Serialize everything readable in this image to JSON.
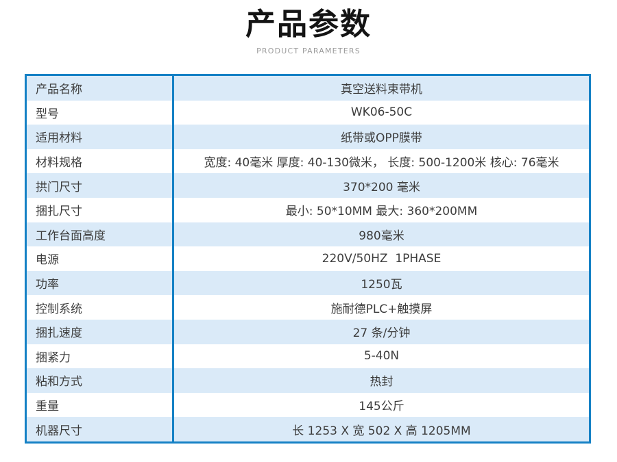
{
  "header": {
    "title": "产品参数",
    "subtitle": "PRODUCT PARAMETERS"
  },
  "colors": {
    "table_border": "#1581c5",
    "row_alt": "#daeaf8",
    "row_plain": "#ffffff",
    "text": "#3d3d3d",
    "title_text": "#141414",
    "subtitle_text": "#9b9b9b"
  },
  "table": {
    "rows": [
      {
        "label": "产品名称",
        "value": "真空送料束带机"
      },
      {
        "label": "型号",
        "value": "WK06-50C"
      },
      {
        "label": "适用材料",
        "value": "纸带或OPP膜带"
      },
      {
        "label": "材料规格",
        "value": "宽度: 40毫米 厚度: 40-130微米， 长度: 500-1200米 核心: 76毫米"
      },
      {
        "label": "拱门尺寸",
        "value": "370*200 毫米"
      },
      {
        "label": "捆扎尺寸",
        "value": "最小: 50*10MM 最大: 360*200MM"
      },
      {
        "label": "工作台面高度",
        "value": "980毫米"
      },
      {
        "label": "电源",
        "value": "220V/50HZ  1PHASE"
      },
      {
        "label": "功率",
        "value": "1250瓦"
      },
      {
        "label": "控制系统",
        "value": "施耐德PLC+触摸屏"
      },
      {
        "label": "捆扎速度",
        "value": "27 条/分钟"
      },
      {
        "label": "捆紧力",
        "value": "5-40N"
      },
      {
        "label": "粘和方式",
        "value": "热封"
      },
      {
        "label": "重量",
        "value": "145公斤"
      },
      {
        "label": "机器尺寸",
        "value": "长 1253 X 宽 502 X 高 1205MM"
      }
    ]
  }
}
